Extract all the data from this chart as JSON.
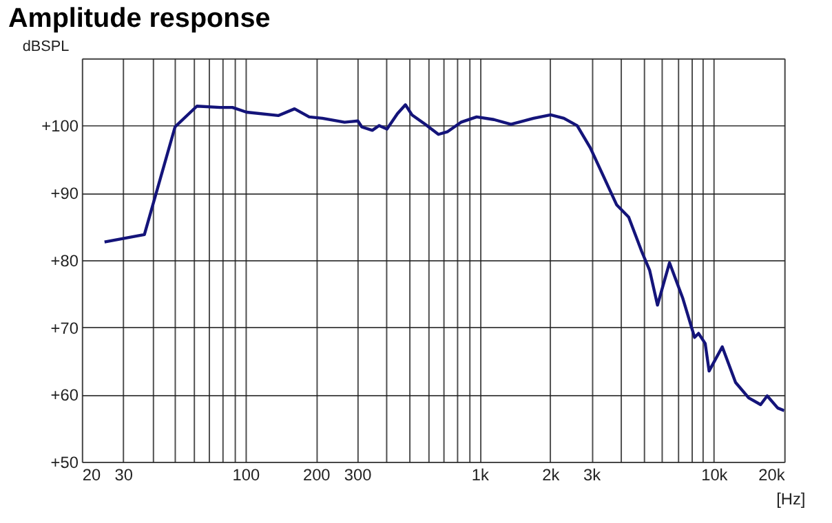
{
  "chart_data": {
    "type": "line",
    "title": "Amplitude response",
    "xlabel": "[Hz]",
    "ylabel": "dBSPL",
    "log": "x",
    "grid": true,
    "line_style": "solid",
    "marker": "none",
    "xlim": [
      20,
      20000
    ],
    "ylim": [
      50,
      110
    ],
    "xticks": [
      20,
      30,
      {
        "value": 40,
        "label": null
      },
      {
        "value": 50,
        "label": null
      },
      {
        "value": 60,
        "label": null
      },
      {
        "value": 70,
        "label": null
      },
      {
        "value": 80,
        "label": null
      },
      {
        "value": 90,
        "label": null
      },
      100,
      200,
      300,
      {
        "value": 400,
        "label": null
      },
      {
        "value": 500,
        "label": null
      },
      {
        "value": 600,
        "label": null
      },
      {
        "value": 700,
        "label": null
      },
      {
        "value": 800,
        "label": null
      },
      {
        "value": 900,
        "label": null
      },
      {
        "value": 1000,
        "label": "1k"
      },
      {
        "value": 2000,
        "label": "2k"
      },
      {
        "value": 3000,
        "label": "3k"
      },
      {
        "value": 4000,
        "label": null
      },
      {
        "value": 5000,
        "label": null
      },
      {
        "value": 6000,
        "label": null
      },
      {
        "value": 7000,
        "label": null
      },
      {
        "value": 8000,
        "label": null
      },
      {
        "value": 9000,
        "label": null
      },
      {
        "value": 10000,
        "label": "10k"
      },
      {
        "value": 20000,
        "label": "20k"
      }
    ],
    "yticks": [
      {
        "value": 50,
        "label": "+50"
      },
      {
        "value": 60,
        "label": "+60"
      },
      {
        "value": 70,
        "label": "+70"
      },
      {
        "value": 80,
        "label": "+80"
      },
      {
        "value": 90,
        "label": "+90"
      },
      {
        "value": 100,
        "label": "+100"
      },
      {
        "value": 110,
        "label": null
      }
    ],
    "series": [
      {
        "color": "#14147a",
        "x": [
          25,
          37,
          50,
          62,
          78,
          88,
          101,
          138,
          162,
          187,
          213,
          265,
          302,
          314,
          348,
          372,
          402,
          446,
          482,
          514,
          585,
          667,
          730,
          832,
          971,
          1150,
          1360,
          1700,
          2010,
          2290,
          2610,
          2970,
          3850,
          4330,
          4920,
          5320,
          5750,
          6470,
          7360,
          8280,
          8610,
          9190,
          9550,
          10870,
          12390,
          14090,
          15850,
          16910,
          18750,
          20000
        ],
        "values": [
          82.7,
          83.8,
          99.8,
          102.9,
          102.7,
          102.7,
          102.0,
          101.5,
          102.5,
          101.3,
          101.1,
          100.5,
          100.7,
          99.8,
          99.3,
          100.0,
          99.5,
          101.8,
          103.1,
          101.6,
          100.2,
          98.7,
          99.1,
          100.5,
          101.3,
          100.9,
          100.2,
          101.1,
          101.6,
          101.1,
          100.0,
          96.7,
          88.2,
          86.4,
          81.3,
          78.5,
          73.3,
          79.6,
          74.4,
          68.5,
          69.1,
          67.6,
          63.5,
          67.1,
          61.8,
          59.5,
          58.5,
          59.8,
          58.0,
          57.6
        ]
      }
    ]
  }
}
